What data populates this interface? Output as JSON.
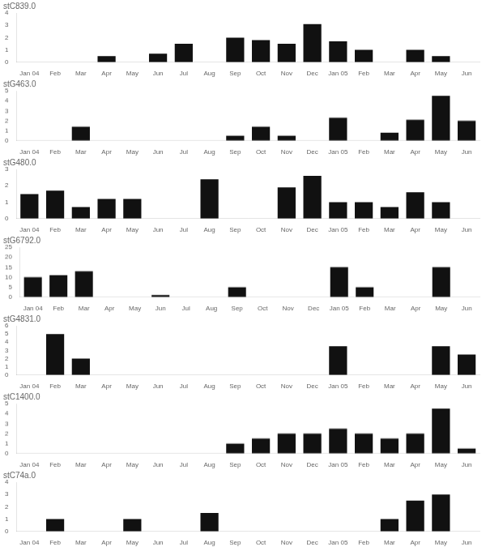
{
  "chart_data": [
    {
      "type": "bar",
      "title": "stC839.0",
      "categories": [
        "Jan 04",
        "Feb",
        "Mar",
        "Apr",
        "May",
        "Jun",
        "Jul",
        "Aug",
        "Sep",
        "Oct",
        "Nov",
        "Dec",
        "Jan 05",
        "Feb",
        "Mar",
        "Apr",
        "May",
        "Jun"
      ],
      "values": [
        0,
        0,
        0,
        0.5,
        0,
        0.7,
        1.5,
        0,
        2.0,
        1.8,
        1.5,
        3.1,
        1.7,
        1.0,
        0,
        1.0,
        0.5,
        0
      ],
      "color": "#111111",
      "ylim": [
        0,
        4
      ],
      "yticks": [
        0,
        1,
        2,
        3,
        4
      ],
      "grid": false
    },
    {
      "type": "bar",
      "title": "stG463.0",
      "categories": [
        "Jan 04",
        "Feb",
        "Mar",
        "Apr",
        "May",
        "Jun",
        "Jul",
        "Aug",
        "Sep",
        "Oct",
        "Nov",
        "Dec",
        "Jan 05",
        "Feb",
        "Mar",
        "Apr",
        "May",
        "Jun"
      ],
      "values": [
        0,
        0,
        1.4,
        0,
        0,
        0,
        0,
        0,
        0.5,
        1.4,
        0.5,
        0,
        2.3,
        0,
        0.8,
        2.1,
        4.5,
        2.0
      ],
      "color": "#111111",
      "ylim": [
        0,
        5
      ],
      "yticks": [
        0,
        1,
        2,
        3,
        4,
        5
      ],
      "grid": false
    },
    {
      "type": "bar",
      "title": "stG480.0",
      "categories": [
        "Jan 04",
        "Feb",
        "Mar",
        "Apr",
        "May",
        "Jun",
        "Jul",
        "Aug",
        "Sep",
        "Oct",
        "Nov",
        "Dec",
        "Jan 05",
        "Feb",
        "Mar",
        "Apr",
        "May",
        "Jun"
      ],
      "values": [
        1.5,
        1.7,
        0.7,
        1.2,
        1.2,
        0,
        0,
        2.4,
        0,
        0,
        1.9,
        2.6,
        1.0,
        1.0,
        0.7,
        1.6,
        1.0,
        0
      ],
      "color": "#111111",
      "ylim": [
        0,
        3
      ],
      "yticks": [
        0,
        1,
        2,
        3
      ],
      "grid": false
    },
    {
      "type": "bar",
      "title": "stG6792.0",
      "categories": [
        "Jan 04",
        "Feb",
        "Mar",
        "Apr",
        "May",
        "Jun",
        "Jul",
        "Aug",
        "Sep",
        "Oct",
        "Nov",
        "Dec",
        "Jan 05",
        "Feb",
        "Mar",
        "Apr",
        "May",
        "Jun"
      ],
      "values": [
        10,
        11,
        13,
        0,
        0,
        1.0,
        0,
        0,
        5.0,
        0,
        0,
        0,
        15,
        5,
        0,
        0,
        15,
        0
      ],
      "color": "#111111",
      "ylim": [
        0,
        25
      ],
      "yticks": [
        0,
        5,
        10,
        15,
        20,
        25
      ],
      "grid": false
    },
    {
      "type": "bar",
      "title": "stG4831.0",
      "categories": [
        "Jan 04",
        "Feb",
        "Mar",
        "Apr",
        "May",
        "Jun",
        "Jul",
        "Aug",
        "Sep",
        "Oct",
        "Nov",
        "Dec",
        "Jan 05",
        "Feb",
        "Mar",
        "Apr",
        "May",
        "Jun"
      ],
      "values": [
        0,
        5.0,
        2.0,
        0,
        0,
        0,
        0,
        0,
        0,
        0,
        0,
        0,
        3.5,
        0,
        0,
        0,
        3.5,
        2.5
      ],
      "color": "#111111",
      "ylim": [
        0,
        6
      ],
      "yticks": [
        0,
        1,
        2,
        3,
        4,
        5,
        6
      ],
      "grid": false
    },
    {
      "type": "bar",
      "title": "stC1400.0",
      "categories": [
        "Jan 04",
        "Feb",
        "Mar",
        "Apr",
        "May",
        "Jun",
        "Jul",
        "Aug",
        "Sep",
        "Oct",
        "Nov",
        "Dec",
        "Jan 05",
        "Feb",
        "Mar",
        "Apr",
        "May",
        "Jun"
      ],
      "values": [
        0,
        0,
        0,
        0,
        0,
        0,
        0,
        0,
        1.0,
        1.5,
        2.0,
        2.0,
        2.5,
        2.0,
        1.5,
        2.0,
        4.5,
        0.5
      ],
      "color": "#111111",
      "ylim": [
        0,
        5
      ],
      "yticks": [
        0,
        1,
        2,
        3,
        4,
        5
      ],
      "grid": false
    },
    {
      "type": "bar",
      "title": "stC74a.0",
      "categories": [
        "Jan 04",
        "Feb",
        "Mar",
        "Apr",
        "May",
        "Jun",
        "Jul",
        "Aug",
        "Sep",
        "Oct",
        "Nov",
        "Dec",
        "Jan 05",
        "Feb",
        "Mar",
        "Apr",
        "May",
        "Jun"
      ],
      "values": [
        0,
        1.0,
        0,
        0,
        1.0,
        0,
        0,
        1.5,
        0,
        0,
        0,
        0,
        0,
        0,
        1.0,
        2.5,
        3.0,
        0
      ],
      "color": "#111111",
      "ylim": [
        0,
        4
      ],
      "yticks": [
        0,
        1,
        2,
        3,
        4
      ],
      "grid": false
    }
  ]
}
